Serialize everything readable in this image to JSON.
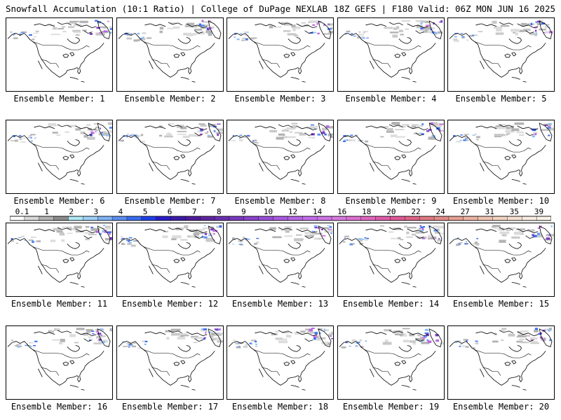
{
  "header": {
    "title_left": "Snowfall Accumulation (10:1 Ratio) | College of DuPage NEXLAB",
    "title_right": "18Z GEFS | F180 Valid: 06Z MON JUN 16 2025"
  },
  "panels": [
    {
      "label": "Ensemble Member: 1"
    },
    {
      "label": "Ensemble Member: 2"
    },
    {
      "label": "Ensemble Member: 3"
    },
    {
      "label": "Ensemble Member: 4"
    },
    {
      "label": "Ensemble Member: 5"
    },
    {
      "label": "Ensemble Member: 6"
    },
    {
      "label": "Ensemble Member: 7"
    },
    {
      "label": "Ensemble Member: 8"
    },
    {
      "label": "Ensemble Member: 9"
    },
    {
      "label": "Ensemble Member: 10"
    },
    {
      "label": "Ensemble Member: 11"
    },
    {
      "label": "Ensemble Member: 12"
    },
    {
      "label": "Ensemble Member: 13"
    },
    {
      "label": "Ensemble Member: 14"
    },
    {
      "label": "Ensemble Member: 15"
    },
    {
      "label": "Ensemble Member: 16"
    },
    {
      "label": "Ensemble Member: 17"
    },
    {
      "label": "Ensemble Member: 18"
    },
    {
      "label": "Ensemble Member: 19"
    },
    {
      "label": "Ensemble Member: 20"
    }
  ],
  "legend": {
    "ticks": [
      "0.1",
      "1",
      "2",
      "3",
      "4",
      "5",
      "6",
      "7",
      "8",
      "9",
      "10",
      "12",
      "14",
      "16",
      "18",
      "20",
      "22",
      "24",
      "27",
      "31",
      "35",
      "39"
    ],
    "colors": [
      "#ffffff",
      "#d9d9d9",
      "#b3b3b3",
      "#8c8c8c",
      "#aee8f4",
      "#9fd0f7",
      "#7fb3f5",
      "#5c8ff0",
      "#3a6cf0",
      "#1f3fe8",
      "#2a1cc8",
      "#3b1ba8",
      "#4e1c98",
      "#5f259e",
      "#6b2fb0",
      "#7a39c0",
      "#8a44cc",
      "#9a4fd6",
      "#aa5adf",
      "#b866e6",
      "#c46dea",
      "#cf74e8",
      "#d97ae0",
      "#de70d2",
      "#e066c0",
      "#e05cac",
      "#df5a98",
      "#de6488",
      "#df7a84",
      "#e28c8a",
      "#e7a094",
      "#ebb3a3",
      "#efc4b3",
      "#f3d3c2",
      "#f6e0d2",
      "#f8ebe1",
      "#faf2e8"
    ]
  }
}
